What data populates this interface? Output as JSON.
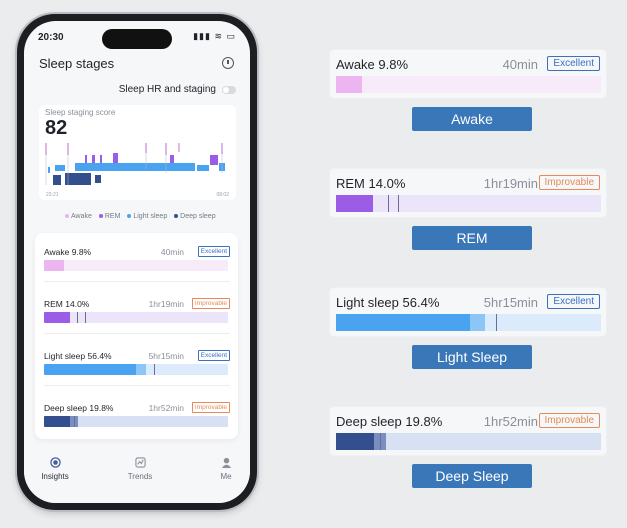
{
  "phone": {
    "status_time": "20:30",
    "status_icons": "▮▮▮ ≋ ▭",
    "title": "Sleep stages",
    "hr_toggle_label": "Sleep HR and staging",
    "hr_toggle_on": false,
    "score_label": "Sleep staging score",
    "score_value": "82",
    "hypnogram_start": "23:21",
    "hypnogram_end": "08:02",
    "legend": [
      {
        "label": "Awake",
        "color": "#ecb4f0"
      },
      {
        "label": "REM",
        "color": "#9b5de5"
      },
      {
        "label": "Light sleep",
        "color": "#4aa3f0"
      },
      {
        "label": "Deep sleep",
        "color": "#334f8e"
      }
    ],
    "nav": [
      {
        "label": "Insights",
        "icon": "insights-icon",
        "active": true
      },
      {
        "label": "Trends",
        "icon": "trends-icon",
        "active": false
      },
      {
        "label": "Me",
        "icon": "profile-icon",
        "active": false
      }
    ]
  },
  "stages": [
    {
      "name": "Awake",
      "percent": "9.8%",
      "duration": "40min",
      "rating": "Excellent",
      "rating_color": "#3d6fc2",
      "fill_color": "#ecb4f0",
      "track_color": "#f7ebfa",
      "fill_fraction": 0.098
    },
    {
      "name": "REM",
      "percent": "14.0%",
      "duration": "1hr19min",
      "rating": "Improvable",
      "rating_color": "#e58a58",
      "fill_color": "#9b5de5",
      "track_color": "#ece4f9",
      "fill_fraction": 0.14
    },
    {
      "name": "Light sleep",
      "percent": "56.4%",
      "duration": "5hr15min",
      "rating": "Excellent",
      "rating_color": "#3d6fc2",
      "fill_color": "#4aa3f0",
      "track_color": "#dcebfb",
      "fill_fraction": 0.564
    },
    {
      "name": "Deep sleep",
      "percent": "19.8%",
      "duration": "1hr52min",
      "rating": "Improvable",
      "rating_color": "#e58a58",
      "fill_color": "#334f8e",
      "track_color": "#d8e0f4",
      "fill_fraction": 0.198
    }
  ],
  "expanded": {
    "awake_button": "Awake",
    "rem_button": "REM",
    "light_button": "Light Sleep",
    "deep_button": "Deep Sleep"
  }
}
